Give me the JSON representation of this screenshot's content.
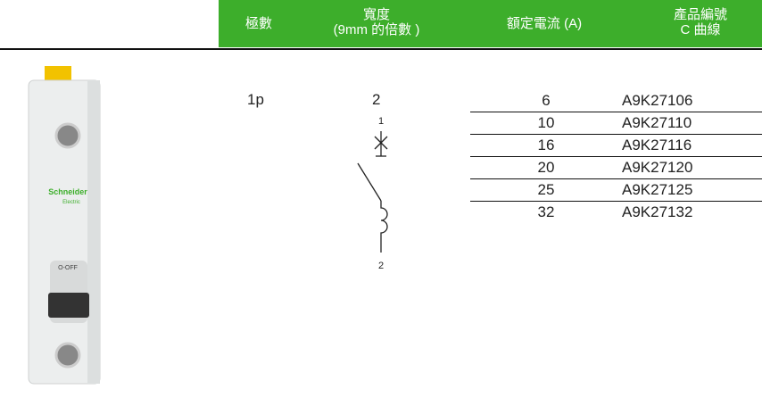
{
  "header": {
    "columns": [
      {
        "lines": [
          "極數"
        ]
      },
      {
        "lines": [
          "寬度",
          "(9mm 的倍數 )"
        ]
      },
      {
        "lines": [
          "額定電流 (A)"
        ]
      },
      {
        "lines": [
          "產品編號",
          "C 曲線"
        ]
      }
    ]
  },
  "product": {
    "brand": "Schneider",
    "sub": "Electric",
    "switch": "O-OFF"
  },
  "table": {
    "poles": "1p",
    "width": "2",
    "symbol": {
      "top": "1",
      "bottom": "2"
    },
    "rows": [
      [
        "6",
        "A9K27106"
      ],
      [
        "10",
        "A9K27110"
      ],
      [
        "16",
        "A9K27116"
      ],
      [
        "20",
        "A9K27120"
      ],
      [
        "25",
        "A9K27125"
      ],
      [
        "32",
        "A9K27132"
      ]
    ]
  }
}
